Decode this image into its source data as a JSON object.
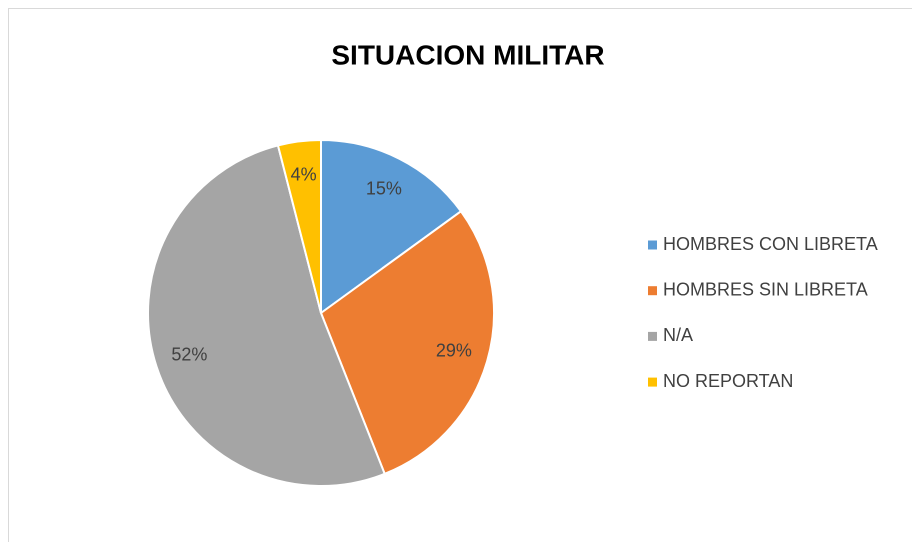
{
  "chart_data": {
    "type": "pie",
    "title": "SITUACION MILITAR",
    "categories": [
      "HOMBRES CON LIBRETA",
      "HOMBRES SIN LIBRETA",
      "N/A",
      "NO REPORTAN"
    ],
    "values": [
      15,
      29,
      52,
      4
    ],
    "value_labels": [
      "15%",
      "29%",
      "52%",
      "4%"
    ],
    "colors": [
      "#5b9bd5",
      "#ed7d31",
      "#a5a5a5",
      "#ffc000"
    ],
    "legend": "right"
  }
}
